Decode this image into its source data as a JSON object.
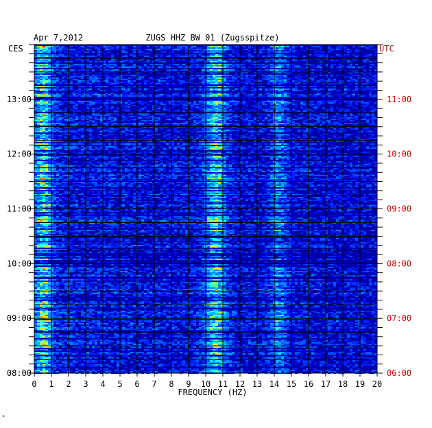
{
  "header": {
    "date": "Apr 7,2012",
    "station": "ZUGS HHZ BW 01 (Zugsspitze)"
  },
  "footnote": "*",
  "chart_data": {
    "type": "heatmap",
    "title": "ZUGS HHZ BW 01 (Zugsspitze)",
    "date_label": "Apr 7,2012",
    "xlabel": "FREQUENCY (HZ)",
    "xlim": [
      0,
      20
    ],
    "x_ticks": [
      "0",
      "1",
      "2",
      "3",
      "4",
      "5",
      "6",
      "7",
      "8",
      "9",
      "10",
      "11",
      "12",
      "13",
      "14",
      "15",
      "16",
      "17",
      "18",
      "19",
      "20"
    ],
    "left_axis": {
      "timezone": "CES",
      "range_hours": [
        8.0,
        14.0
      ],
      "tick_labels": [
        "13:00",
        "12:00",
        "11:00",
        "10:00",
        "09:00",
        "08:00"
      ],
      "tick_hours": [
        13,
        12,
        11,
        10,
        9,
        8
      ]
    },
    "right_axis": {
      "timezone": "UTC",
      "tick_labels": [
        "11:00",
        "10:00",
        "09:00",
        "08:00",
        "07:00",
        "06:00"
      ],
      "tick_hours": [
        11,
        10,
        9,
        8,
        7,
        6
      ]
    },
    "grid": true,
    "background_color": "#0000aa",
    "features": [
      {
        "name": "low-frequency band",
        "freq_range": [
          0.1,
          1.0
        ],
        "intensity": "high"
      },
      {
        "name": "band near 10.5 Hz",
        "freq_range": [
          10.0,
          11.2
        ],
        "intensity": "high"
      },
      {
        "name": "band near 14.3 Hz",
        "freq_range": [
          13.8,
          14.7
        ],
        "intensity": "medium"
      }
    ]
  }
}
